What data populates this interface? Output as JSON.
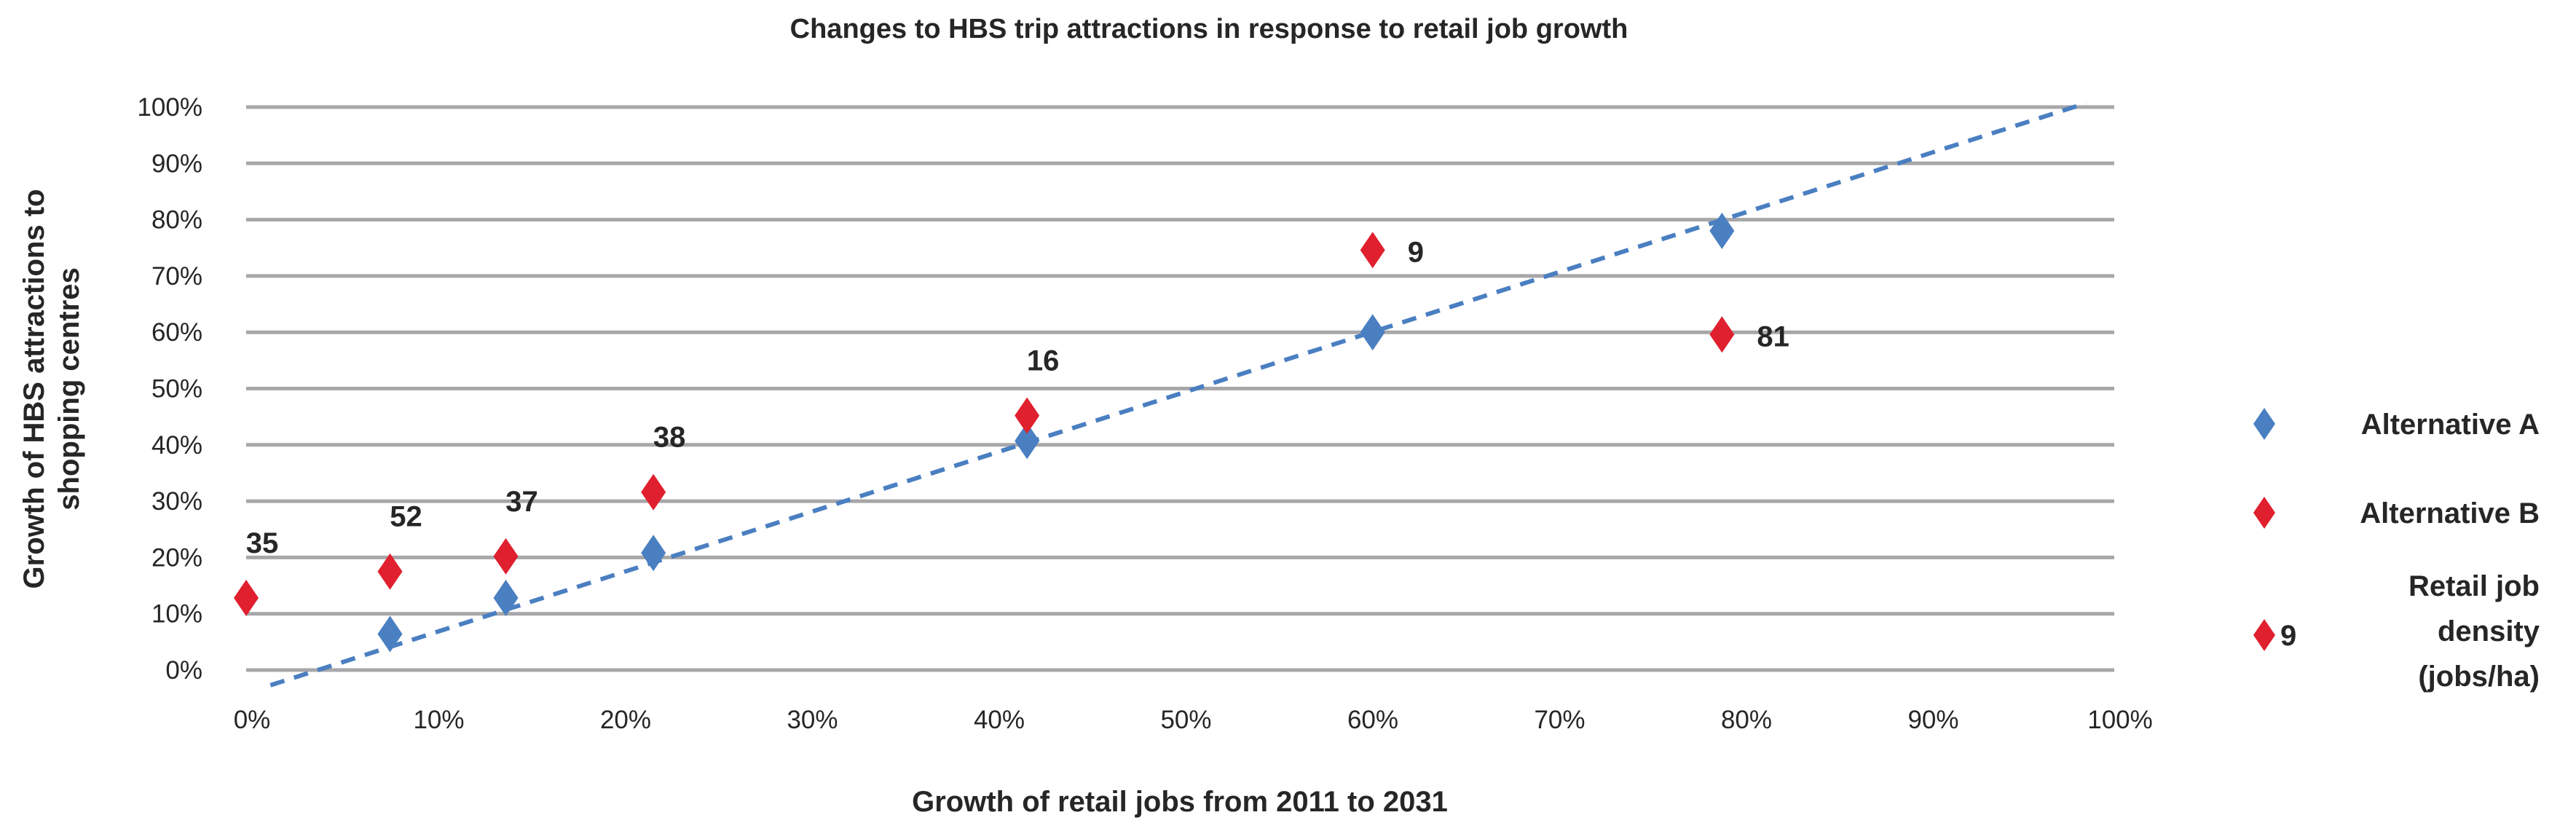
{
  "chart_data": {
    "type": "scatter",
    "title": "Changes to HBS trip attractions in response to retail job growth",
    "xlabel": "Growth of retail jobs from 2011 to 2031",
    "ylabel_lines": [
      "Growth of HBS attractions to",
      "shopping centres"
    ],
    "xlim": [
      0,
      100
    ],
    "ylim": [
      0,
      100
    ],
    "x_ticks": [
      "0%",
      "10%",
      "20%",
      "30%",
      "40%",
      "50%",
      "60%",
      "70%",
      "80%",
      "90%",
      "100%"
    ],
    "y_ticks": [
      "0%",
      "10%",
      "20%",
      "30%",
      "40%",
      "50%",
      "60%",
      "70%",
      "80%",
      "90%",
      "100%"
    ],
    "grid": "horizontal",
    "legend_position": "right",
    "series": [
      {
        "name": "Alternative A",
        "color": "#4a7fc1",
        "marker": "diamond",
        "points": [
          {
            "x": 7.7,
            "y": 6.4
          },
          {
            "x": 13.9,
            "y": 12.8
          },
          {
            "x": 21.8,
            "y": 20.8
          },
          {
            "x": 41.8,
            "y": 40.7
          },
          {
            "x": 60.3,
            "y": 60.0
          },
          {
            "x": 79.0,
            "y": 78.0
          }
        ]
      },
      {
        "name": "Alternative B",
        "color": "#e0202e",
        "marker": "diamond",
        "points": [
          {
            "x": 0.0,
            "y": 12.8,
            "label": "35"
          },
          {
            "x": 7.7,
            "y": 17.5,
            "label": "52"
          },
          {
            "x": 13.9,
            "y": 20.2,
            "label": "37"
          },
          {
            "x": 21.8,
            "y": 31.6,
            "label": "38"
          },
          {
            "x": 41.8,
            "y": 45.2,
            "label": "16"
          },
          {
            "x": 60.3,
            "y": 74.6,
            "label": "9"
          },
          {
            "x": 79.0,
            "y": 59.6,
            "label": "81"
          }
        ]
      }
    ],
    "trendline": {
      "series": "Alternative A",
      "style": "dashed",
      "color": "#4a7fc1",
      "from": {
        "x": 1.3,
        "y": -2.7
      },
      "to": {
        "x": 98.5,
        "y": 100.7
      }
    },
    "legend": {
      "items": [
        "Alternative A",
        "Alternative B"
      ],
      "density_example": "9",
      "density_lines": [
        "Retail job",
        "density",
        "(jobs/ha)"
      ]
    }
  }
}
